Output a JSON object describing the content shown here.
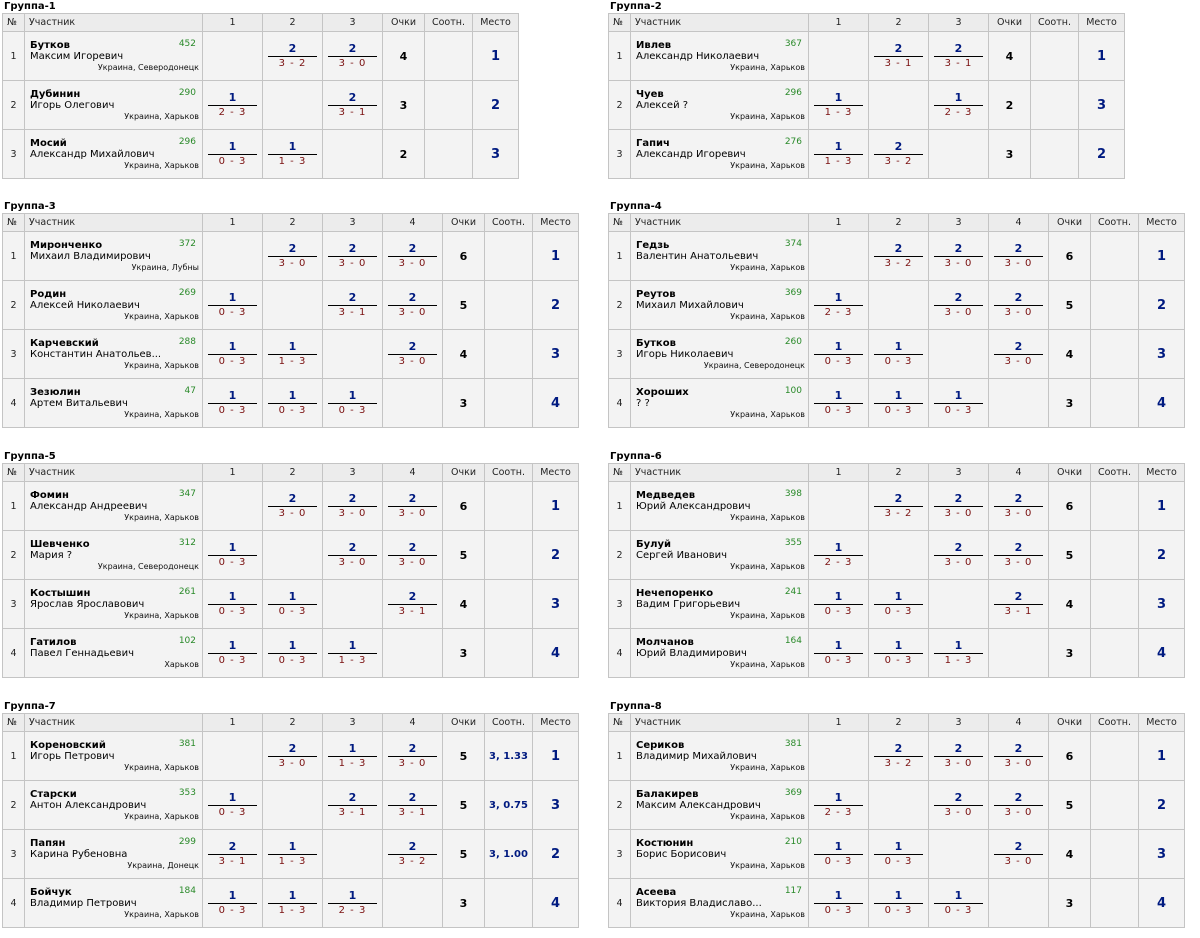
{
  "headers": {
    "no": "№",
    "participant": "Участник",
    "points": "Очки",
    "tie": "Соотн.",
    "place": "Место"
  },
  "groups": [
    {
      "title": "Группа-1",
      "cols": [
        "1",
        "2",
        "3"
      ],
      "rows": [
        {
          "no": "1",
          "last": "Бутков",
          "first": "Максим Игоревич",
          "rating": "452",
          "city": "Украина, Северодонецк",
          "results": [
            null,
            {
              "s": "2",
              "sc": "3 - 2"
            },
            {
              "s": "2",
              "sc": "3 - 0"
            }
          ],
          "points": "4",
          "tie": "",
          "place": "1"
        },
        {
          "no": "2",
          "last": "Дубинин",
          "first": "Игорь Олегович",
          "rating": "290",
          "city": "Украина, Харьков",
          "results": [
            {
              "s": "1",
              "sc": "2 - 3"
            },
            null,
            {
              "s": "2",
              "sc": "3 - 1"
            }
          ],
          "points": "3",
          "tie": "",
          "place": "2"
        },
        {
          "no": "3",
          "last": "Мосий",
          "first": "Александр Михайлович",
          "rating": "296",
          "city": "Украина, Харьков",
          "results": [
            {
              "s": "1",
              "sc": "0 - 3"
            },
            {
              "s": "1",
              "sc": "1 - 3"
            },
            null
          ],
          "points": "2",
          "tie": "",
          "place": "3"
        }
      ]
    },
    {
      "title": "Группа-2",
      "cols": [
        "1",
        "2",
        "3"
      ],
      "rows": [
        {
          "no": "1",
          "last": "Ивлев",
          "first": "Александр Николаевич",
          "rating": "367",
          "city": "Украина, Харьков",
          "results": [
            null,
            {
              "s": "2",
              "sc": "3 - 1"
            },
            {
              "s": "2",
              "sc": "3 - 1"
            }
          ],
          "points": "4",
          "tie": "",
          "place": "1"
        },
        {
          "no": "2",
          "last": "Чуев",
          "first": "Алексей ?",
          "rating": "296",
          "city": "Украина, Харьков",
          "results": [
            {
              "s": "1",
              "sc": "1 - 3"
            },
            null,
            {
              "s": "1",
              "sc": "2 - 3"
            }
          ],
          "points": "2",
          "tie": "",
          "place": "3"
        },
        {
          "no": "3",
          "last": "Гапич",
          "first": "Александр Игоревич",
          "rating": "276",
          "city": "Украина, Харьков",
          "results": [
            {
              "s": "1",
              "sc": "1 - 3"
            },
            {
              "s": "2",
              "sc": "3 - 2"
            },
            null
          ],
          "points": "3",
          "tie": "",
          "place": "2"
        }
      ]
    },
    {
      "title": "Группа-3",
      "cols": [
        "1",
        "2",
        "3",
        "4"
      ],
      "rows": [
        {
          "no": "1",
          "last": "Миронченко",
          "first": "Михаил Владимирович",
          "rating": "372",
          "city": "Украина, Лубны",
          "results": [
            null,
            {
              "s": "2",
              "sc": "3 - 0"
            },
            {
              "s": "2",
              "sc": "3 - 0"
            },
            {
              "s": "2",
              "sc": "3 - 0"
            }
          ],
          "points": "6",
          "tie": "",
          "place": "1"
        },
        {
          "no": "2",
          "last": "Родин",
          "first": "Алексей Николаевич",
          "rating": "269",
          "city": "Украина, Харьков",
          "results": [
            {
              "s": "1",
              "sc": "0 - 3"
            },
            null,
            {
              "s": "2",
              "sc": "3 - 1"
            },
            {
              "s": "2",
              "sc": "3 - 0"
            }
          ],
          "points": "5",
          "tie": "",
          "place": "2"
        },
        {
          "no": "3",
          "last": "Карчевский",
          "first": "Константин Анатольев...",
          "rating": "288",
          "city": "Украина, Харьков",
          "results": [
            {
              "s": "1",
              "sc": "0 - 3"
            },
            {
              "s": "1",
              "sc": "1 - 3"
            },
            null,
            {
              "s": "2",
              "sc": "3 - 0"
            }
          ],
          "points": "4",
          "tie": "",
          "place": "3"
        },
        {
          "no": "4",
          "last": "Зезюлин",
          "first": "Артем Витальевич",
          "rating": "47",
          "city": "Украина, Харьков",
          "results": [
            {
              "s": "1",
              "sc": "0 - 3"
            },
            {
              "s": "1",
              "sc": "0 - 3"
            },
            {
              "s": "1",
              "sc": "0 - 3"
            },
            null
          ],
          "points": "3",
          "tie": "",
          "place": "4"
        }
      ]
    },
    {
      "title": "Группа-4",
      "cols": [
        "1",
        "2",
        "3",
        "4"
      ],
      "rows": [
        {
          "no": "1",
          "last": "Гедзь",
          "first": "Валентин Анатольевич",
          "rating": "374",
          "city": "Украина, Харьков",
          "results": [
            null,
            {
              "s": "2",
              "sc": "3 - 2"
            },
            {
              "s": "2",
              "sc": "3 - 0"
            },
            {
              "s": "2",
              "sc": "3 - 0"
            }
          ],
          "points": "6",
          "tie": "",
          "place": "1"
        },
        {
          "no": "2",
          "last": "Реутов",
          "first": "Михаил Михайлович",
          "rating": "369",
          "city": "Украина, Харьков",
          "results": [
            {
              "s": "1",
              "sc": "2 - 3"
            },
            null,
            {
              "s": "2",
              "sc": "3 - 0"
            },
            {
              "s": "2",
              "sc": "3 - 0"
            }
          ],
          "points": "5",
          "tie": "",
          "place": "2"
        },
        {
          "no": "3",
          "last": "Бутков",
          "first": "Игорь Николаевич",
          "rating": "260",
          "city": "Украина, Северодонецк",
          "results": [
            {
              "s": "1",
              "sc": "0 - 3"
            },
            {
              "s": "1",
              "sc": "0 - 3"
            },
            null,
            {
              "s": "2",
              "sc": "3 - 0"
            }
          ],
          "points": "4",
          "tie": "",
          "place": "3"
        },
        {
          "no": "4",
          "last": "Хороших",
          "first": "? ?",
          "rating": "100",
          "city": "Украина, Харьков",
          "results": [
            {
              "s": "1",
              "sc": "0 - 3"
            },
            {
              "s": "1",
              "sc": "0 - 3"
            },
            {
              "s": "1",
              "sc": "0 - 3"
            },
            null
          ],
          "points": "3",
          "tie": "",
          "place": "4"
        }
      ]
    },
    {
      "title": "Группа-5",
      "cols": [
        "1",
        "2",
        "3",
        "4"
      ],
      "rows": [
        {
          "no": "1",
          "last": "Фомин",
          "first": "Александр Андреевич",
          "rating": "347",
          "city": "Украина, Харьков",
          "results": [
            null,
            {
              "s": "2",
              "sc": "3 - 0"
            },
            {
              "s": "2",
              "sc": "3 - 0"
            },
            {
              "s": "2",
              "sc": "3 - 0"
            }
          ],
          "points": "6",
          "tie": "",
          "place": "1"
        },
        {
          "no": "2",
          "last": "Шевченко",
          "first": "Мария ?",
          "rating": "312",
          "city": "Украина, Северодонецк",
          "results": [
            {
              "s": "1",
              "sc": "0 - 3"
            },
            null,
            {
              "s": "2",
              "sc": "3 - 0"
            },
            {
              "s": "2",
              "sc": "3 - 0"
            }
          ],
          "points": "5",
          "tie": "",
          "place": "2"
        },
        {
          "no": "3",
          "last": "Костышин",
          "first": "Ярослав Ярославович",
          "rating": "261",
          "city": "Украина, Харьков",
          "results": [
            {
              "s": "1",
              "sc": "0 - 3"
            },
            {
              "s": "1",
              "sc": "0 - 3"
            },
            null,
            {
              "s": "2",
              "sc": "3 - 1"
            }
          ],
          "points": "4",
          "tie": "",
          "place": "3"
        },
        {
          "no": "4",
          "last": "Гатилов",
          "first": "Павел Геннадьевич",
          "rating": "102",
          "city": "Харьков",
          "results": [
            {
              "s": "1",
              "sc": "0 - 3"
            },
            {
              "s": "1",
              "sc": "0 - 3"
            },
            {
              "s": "1",
              "sc": "1 - 3"
            },
            null
          ],
          "points": "3",
          "tie": "",
          "place": "4"
        }
      ]
    },
    {
      "title": "Группа-6",
      "cols": [
        "1",
        "2",
        "3",
        "4"
      ],
      "rows": [
        {
          "no": "1",
          "last": "Медведев",
          "first": "Юрий Александрович",
          "rating": "398",
          "city": "Украина, Харьков",
          "results": [
            null,
            {
              "s": "2",
              "sc": "3 - 2"
            },
            {
              "s": "2",
              "sc": "3 - 0"
            },
            {
              "s": "2",
              "sc": "3 - 0"
            }
          ],
          "points": "6",
          "tie": "",
          "place": "1"
        },
        {
          "no": "2",
          "last": "Булуй",
          "first": "Сергей Иванович",
          "rating": "355",
          "city": "Украина, Харьков",
          "results": [
            {
              "s": "1",
              "sc": "2 - 3"
            },
            null,
            {
              "s": "2",
              "sc": "3 - 0"
            },
            {
              "s": "2",
              "sc": "3 - 0"
            }
          ],
          "points": "5",
          "tie": "",
          "place": "2"
        },
        {
          "no": "3",
          "last": "Нечепоренко",
          "first": "Вадим Григорьевич",
          "rating": "241",
          "city": "Украина, Харьков",
          "results": [
            {
              "s": "1",
              "sc": "0 - 3"
            },
            {
              "s": "1",
              "sc": "0 - 3"
            },
            null,
            {
              "s": "2",
              "sc": "3 - 1"
            }
          ],
          "points": "4",
          "tie": "",
          "place": "3"
        },
        {
          "no": "4",
          "last": "Молчанов",
          "first": "Юрий Владимирович",
          "rating": "164",
          "city": "Украина, Харьков",
          "results": [
            {
              "s": "1",
              "sc": "0 - 3"
            },
            {
              "s": "1",
              "sc": "0 - 3"
            },
            {
              "s": "1",
              "sc": "1 - 3"
            },
            null
          ],
          "points": "3",
          "tie": "",
          "place": "4"
        }
      ]
    },
    {
      "title": "Группа-7",
      "cols": [
        "1",
        "2",
        "3",
        "4"
      ],
      "rows": [
        {
          "no": "1",
          "last": "Кореновский",
          "first": "Игорь Петрович",
          "rating": "381",
          "city": "Украина, Харьков",
          "results": [
            null,
            {
              "s": "2",
              "sc": "3 - 0"
            },
            {
              "s": "1",
              "sc": "1 - 3"
            },
            {
              "s": "2",
              "sc": "3 - 0"
            }
          ],
          "points": "5",
          "tie": "3, 1.33",
          "place": "1"
        },
        {
          "no": "2",
          "last": "Старски",
          "first": "Антон Александрович",
          "rating": "353",
          "city": "Украина, Харьков",
          "results": [
            {
              "s": "1",
              "sc": "0 - 3"
            },
            null,
            {
              "s": "2",
              "sc": "3 - 1"
            },
            {
              "s": "2",
              "sc": "3 - 1"
            }
          ],
          "points": "5",
          "tie": "3, 0.75",
          "place": "3"
        },
        {
          "no": "3",
          "last": "Папян",
          "first": "Карина Рубеновна",
          "rating": "299",
          "city": "Украина, Донецк",
          "results": [
            {
              "s": "2",
              "sc": "3 - 1"
            },
            {
              "s": "1",
              "sc": "1 - 3"
            },
            null,
            {
              "s": "2",
              "sc": "3 - 2"
            }
          ],
          "points": "5",
          "tie": "3, 1.00",
          "place": "2"
        },
        {
          "no": "4",
          "last": "Бойчук",
          "first": "Владимир Петрович",
          "rating": "184",
          "city": "Украина, Харьков",
          "results": [
            {
              "s": "1",
              "sc": "0 - 3"
            },
            {
              "s": "1",
              "sc": "1 - 3"
            },
            {
              "s": "1",
              "sc": "2 - 3"
            },
            null
          ],
          "points": "3",
          "tie": "",
          "place": "4"
        }
      ]
    },
    {
      "title": "Группа-8",
      "cols": [
        "1",
        "2",
        "3",
        "4"
      ],
      "rows": [
        {
          "no": "1",
          "last": "Сериков",
          "first": "Владимир Михайлович",
          "rating": "381",
          "city": "Украина, Харьков",
          "results": [
            null,
            {
              "s": "2",
              "sc": "3 - 2"
            },
            {
              "s": "2",
              "sc": "3 - 0"
            },
            {
              "s": "2",
              "sc": "3 - 0"
            }
          ],
          "points": "6",
          "tie": "",
          "place": "1"
        },
        {
          "no": "2",
          "last": "Балакирев",
          "first": "Максим Александрович",
          "rating": "369",
          "city": "Украина, Харьков",
          "results": [
            {
              "s": "1",
              "sc": "2 - 3"
            },
            null,
            {
              "s": "2",
              "sc": "3 - 0"
            },
            {
              "s": "2",
              "sc": "3 - 0"
            }
          ],
          "points": "5",
          "tie": "",
          "place": "2"
        },
        {
          "no": "3",
          "last": "Костюнин",
          "first": "Борис Борисович",
          "rating": "210",
          "city": "Украина, Харьков",
          "results": [
            {
              "s": "1",
              "sc": "0 - 3"
            },
            {
              "s": "1",
              "sc": "0 - 3"
            },
            null,
            {
              "s": "2",
              "sc": "3 - 0"
            }
          ],
          "points": "4",
          "tie": "",
          "place": "3"
        },
        {
          "no": "4",
          "last": "Асеева",
          "first": "Виктория Владиславо...",
          "rating": "117",
          "city": "Украина, Харьков",
          "results": [
            {
              "s": "1",
              "sc": "0 - 3"
            },
            {
              "s": "1",
              "sc": "0 - 3"
            },
            {
              "s": "1",
              "sc": "0 - 3"
            },
            null
          ],
          "points": "3",
          "tie": "",
          "place": "4"
        }
      ]
    }
  ]
}
